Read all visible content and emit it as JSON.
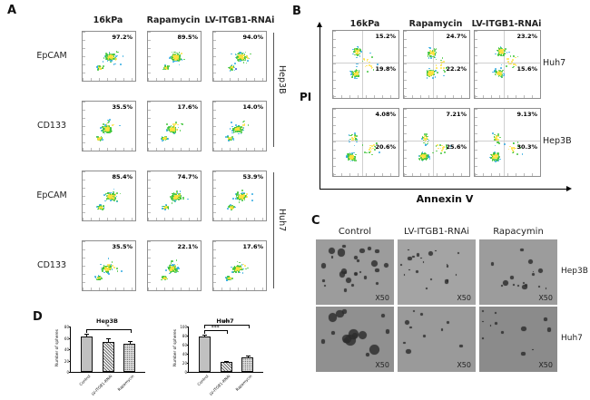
{
  "figure": {
    "panel_a": "A",
    "panel_b": "B",
    "panel_c": "C",
    "panel_d": "D"
  },
  "panelA": {
    "columns": [
      "16kPa",
      "Rapamycin",
      "LV-ITGB1-RNAi"
    ],
    "row_labels": [
      "EpCAM",
      "CD133",
      "EpCAM",
      "CD133"
    ],
    "group_labels": [
      "Hep3B",
      "Huh7"
    ],
    "values": [
      [
        "97.2%",
        "89.5%",
        "94.0%"
      ],
      [
        "35.5%",
        "17.6%",
        "14.0%"
      ],
      [
        "85.4%",
        "74.7%",
        "53.9%"
      ],
      [
        "35.5%",
        "22.1%",
        "17.6%"
      ]
    ]
  },
  "panelB": {
    "columns": [
      "16kPa",
      "Rapamycin",
      "LV-ITGB1-RNAi"
    ],
    "row_labels": [
      "Huh7",
      "Hep3B"
    ],
    "y_axis_label": "PI",
    "x_axis_label": "Annexin V",
    "values": [
      [
        {
          "upper": "15.2%",
          "lower": "19.8%"
        },
        {
          "upper": "24.7%",
          "lower": "22.2%"
        },
        {
          "upper": "23.2%",
          "lower": "15.6%"
        }
      ],
      [
        {
          "upper": "4.08%",
          "lower": "20.6%"
        },
        {
          "upper": "7.21%",
          "lower": "25.6%"
        },
        {
          "upper": "9.13%",
          "lower": "30.3%"
        }
      ]
    ]
  },
  "panelC": {
    "columns": [
      "Control",
      "LV-ITGB1-RNAi",
      "Rapacymin"
    ],
    "row_labels": [
      "Hep3B",
      "Huh7"
    ],
    "magnification": "X50"
  },
  "chart_data": [
    {
      "type": "bar",
      "title": "Hep3B",
      "ylabel": "Number of spheres",
      "categories": [
        "Control",
        "LV-ITGB1-RNAi",
        "Rapamycin"
      ],
      "values": [
        62,
        53,
        50
      ],
      "errors": [
        5,
        6,
        4
      ],
      "ylim": [
        0,
        80
      ],
      "yticks": [
        0,
        20,
        40,
        60,
        80
      ],
      "significance": [
        {
          "from": 0,
          "to": 2,
          "label": "*"
        }
      ]
    },
    {
      "type": "bar",
      "title": "Huh7",
      "ylabel": "Number of spheres",
      "categories": [
        "Control",
        "LV-ITGB1-RNAi",
        "Rapamycin"
      ],
      "values": [
        78,
        22,
        33
      ],
      "errors": [
        4,
        3,
        3
      ],
      "ylim": [
        0,
        100
      ],
      "yticks": [
        0,
        20,
        40,
        60,
        80,
        100
      ],
      "significance": [
        {
          "from": 0,
          "to": 1,
          "label": "***"
        },
        {
          "from": 0,
          "to": 2,
          "label": "***"
        }
      ]
    }
  ]
}
